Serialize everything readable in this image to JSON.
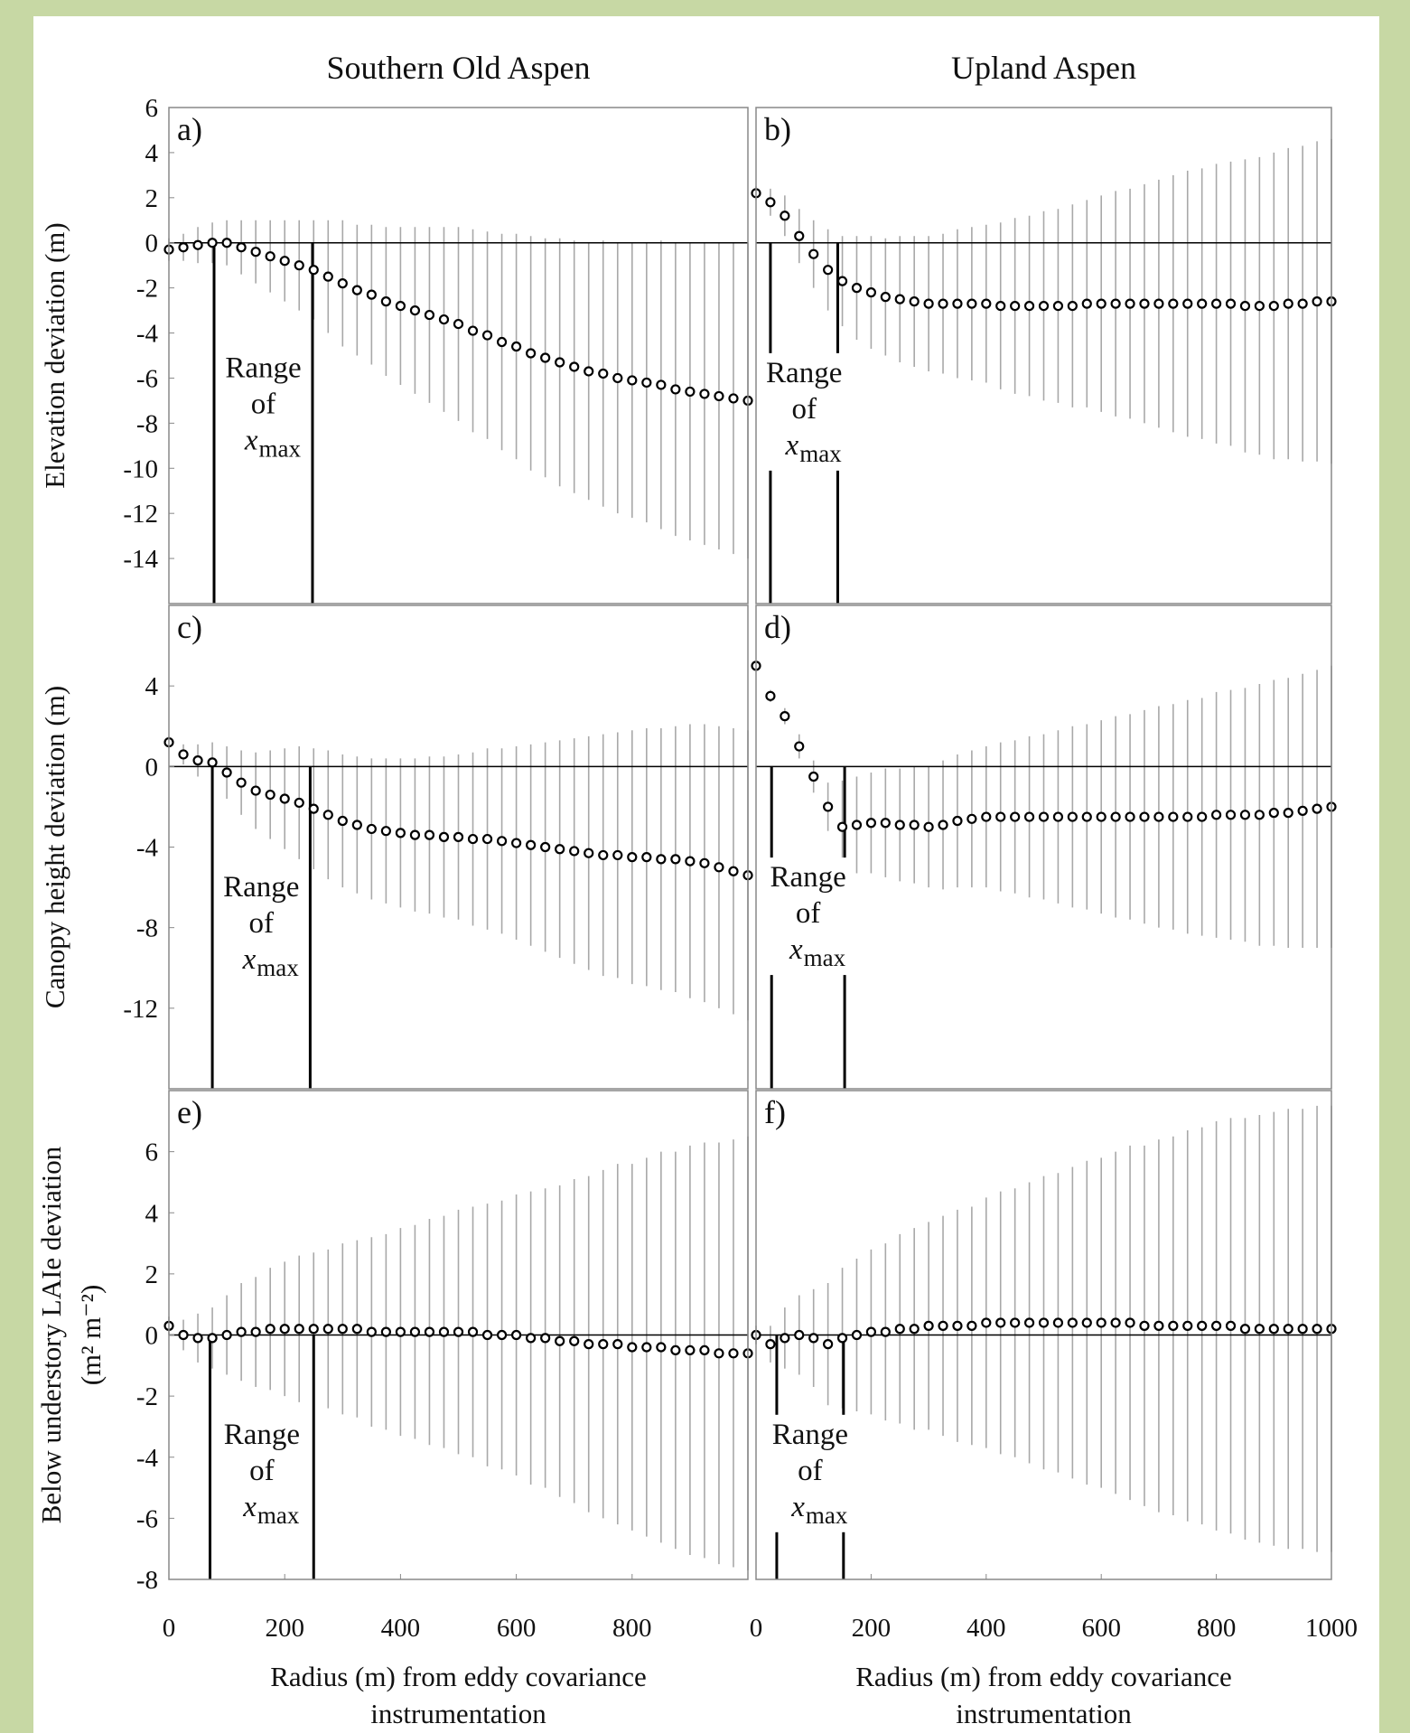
{
  "chart_data": [
    {
      "type": "errorbar",
      "panel": "a)",
      "title": "Southern Old Aspen",
      "ylabel": [
        "Elevation deviation (m)"
      ],
      "xlim": [
        0,
        1000
      ],
      "ylim": [
        -16,
        6
      ],
      "yticks": [
        6,
        4,
        2,
        0,
        -2,
        -4,
        -6,
        -8,
        -10,
        -12,
        -14
      ],
      "zero_line": true,
      "range_lines": [
        78,
        248
      ],
      "annotation": {
        "text": [
          "Range",
          "of"
        ],
        "symbol": "x",
        "subscript": "max"
      },
      "x": [
        0,
        25,
        50,
        75,
        100,
        125,
        150,
        175,
        200,
        225,
        250,
        275,
        300,
        325,
        350,
        375,
        400,
        425,
        450,
        475,
        500,
        525,
        550,
        575,
        600,
        625,
        650,
        675,
        700,
        725,
        750,
        775,
        800,
        825,
        850,
        875,
        900,
        925,
        950,
        975,
        1000
      ],
      "values": [
        -0.3,
        -0.2,
        -0.1,
        0,
        0,
        -0.2,
        -0.4,
        -0.6,
        -0.8,
        -1,
        -1.2,
        -1.5,
        -1.8,
        -2.1,
        -2.3,
        -2.6,
        -2.8,
        -3,
        -3.2,
        -3.4,
        -3.6,
        -3.9,
        -4.1,
        -4.4,
        -4.6,
        -4.9,
        -5.1,
        -5.3,
        -5.5,
        -5.7,
        -5.8,
        -6,
        -6.1,
        -6.2,
        -6.3,
        -6.5,
        -6.6,
        -6.7,
        -6.8,
        -6.9,
        -7
      ],
      "errors": [
        0.5,
        0.6,
        0.8,
        0.9,
        1.0,
        1.2,
        1.4,
        1.6,
        1.8,
        2.0,
        2.2,
        2.5,
        2.8,
        2.9,
        3.1,
        3.3,
        3.5,
        3.7,
        3.9,
        4.1,
        4.3,
        4.5,
        4.6,
        4.8,
        5.0,
        5.2,
        5.3,
        5.5,
        5.6,
        5.7,
        5.9,
        6.0,
        6.1,
        6.2,
        6.4,
        6.5,
        6.6,
        6.7,
        6.8,
        6.9,
        7.0
      ]
    },
    {
      "type": "errorbar",
      "panel": "b)",
      "title": "Upland Aspen",
      "xlim": [
        0,
        1000
      ],
      "ylim": [
        -16,
        6
      ],
      "zero_line": true,
      "range_lines": [
        25,
        142
      ],
      "annotation": {
        "text": [
          "Range",
          "of"
        ],
        "symbol": "x",
        "subscript": "max"
      },
      "x": [
        0,
        25,
        50,
        75,
        100,
        125,
        150,
        175,
        200,
        225,
        250,
        275,
        300,
        325,
        350,
        375,
        400,
        425,
        450,
        475,
        500,
        525,
        550,
        575,
        600,
        625,
        650,
        675,
        700,
        725,
        750,
        775,
        800,
        825,
        850,
        875,
        900,
        925,
        950,
        975,
        1000
      ],
      "values": [
        2.2,
        1.8,
        1.2,
        0.3,
        -0.5,
        -1.2,
        -1.7,
        -2.0,
        -2.2,
        -2.4,
        -2.5,
        -2.6,
        -2.7,
        -2.7,
        -2.7,
        -2.7,
        -2.7,
        -2.8,
        -2.8,
        -2.8,
        -2.8,
        -2.8,
        -2.8,
        -2.7,
        -2.7,
        -2.7,
        -2.7,
        -2.7,
        -2.7,
        -2.7,
        -2.7,
        -2.7,
        -2.7,
        -2.7,
        -2.8,
        -2.8,
        -2.8,
        -2.7,
        -2.7,
        -2.6,
        -2.6
      ],
      "errors": [
        0.3,
        0.6,
        0.9,
        1.2,
        1.5,
        1.8,
        2.0,
        2.3,
        2.5,
        2.6,
        2.8,
        2.9,
        3.0,
        3.1,
        3.3,
        3.4,
        3.5,
        3.7,
        3.9,
        4.0,
        4.2,
        4.3,
        4.5,
        4.6,
        4.8,
        5.0,
        5.1,
        5.3,
        5.5,
        5.7,
        5.9,
        6.0,
        6.2,
        6.3,
        6.5,
        6.6,
        6.8,
        6.9,
        7.0,
        7.1,
        7.2
      ]
    },
    {
      "type": "errorbar",
      "panel": "c)",
      "ylabel": [
        "Canopy height deviation (m)"
      ],
      "xlim": [
        0,
        1000
      ],
      "ylim": [
        -16,
        8
      ],
      "yticks": [
        4,
        0,
        -4,
        -8,
        -12
      ],
      "zero_line": true,
      "range_lines": [
        75,
        244
      ],
      "annotation": {
        "text": [
          "Range",
          "of"
        ],
        "symbol": "x",
        "subscript": "max"
      },
      "x": [
        0,
        25,
        50,
        75,
        100,
        125,
        150,
        175,
        200,
        225,
        250,
        275,
        300,
        325,
        350,
        375,
        400,
        425,
        450,
        475,
        500,
        525,
        550,
        575,
        600,
        625,
        650,
        675,
        700,
        725,
        750,
        775,
        800,
        825,
        850,
        875,
        900,
        925,
        950,
        975,
        1000
      ],
      "values": [
        1.2,
        0.6,
        0.3,
        0.2,
        -0.3,
        -0.8,
        -1.2,
        -1.4,
        -1.6,
        -1.8,
        -2.1,
        -2.4,
        -2.7,
        -2.9,
        -3.1,
        -3.2,
        -3.3,
        -3.4,
        -3.4,
        -3.5,
        -3.5,
        -3.6,
        -3.6,
        -3.7,
        -3.8,
        -3.9,
        -4.0,
        -4.1,
        -4.2,
        -4.3,
        -4.4,
        -4.4,
        -4.5,
        -4.5,
        -4.6,
        -4.6,
        -4.7,
        -4.8,
        -5.0,
        -5.2,
        -5.4
      ],
      "errors": [
        0.3,
        0.5,
        0.8,
        1.0,
        1.3,
        1.6,
        1.9,
        2.2,
        2.5,
        2.8,
        3.0,
        3.2,
        3.3,
        3.4,
        3.5,
        3.6,
        3.7,
        3.8,
        3.9,
        4.0,
        4.1,
        4.3,
        4.5,
        4.6,
        4.8,
        5.0,
        5.2,
        5.4,
        5.6,
        5.8,
        6.0,
        6.1,
        6.3,
        6.4,
        6.5,
        6.6,
        6.8,
        6.9,
        7.0,
        7.1,
        7.2
      ]
    },
    {
      "type": "errorbar",
      "panel": "d)",
      "xlim": [
        0,
        1000
      ],
      "ylim": [
        -16,
        8
      ],
      "zero_line": true,
      "range_lines": [
        27,
        154
      ],
      "annotation": {
        "text": [
          "Range",
          "of"
        ],
        "symbol": "x",
        "subscript": "max"
      },
      "x": [
        0,
        25,
        50,
        75,
        100,
        125,
        150,
        175,
        200,
        225,
        250,
        275,
        300,
        325,
        350,
        375,
        400,
        425,
        450,
        475,
        500,
        525,
        550,
        575,
        600,
        625,
        650,
        675,
        700,
        725,
        750,
        775,
        800,
        825,
        850,
        875,
        900,
        925,
        950,
        975,
        1000
      ],
      "values": [
        5.0,
        3.5,
        2.5,
        1.0,
        -0.5,
        -2.0,
        -3.0,
        -2.9,
        -2.8,
        -2.8,
        -2.9,
        -2.9,
        -3.0,
        -2.9,
        -2.7,
        -2.6,
        -2.5,
        -2.5,
        -2.5,
        -2.5,
        -2.5,
        -2.5,
        -2.5,
        -2.5,
        -2.5,
        -2.5,
        -2.5,
        -2.5,
        -2.5,
        -2.5,
        -2.5,
        -2.5,
        -2.4,
        -2.4,
        -2.4,
        -2.4,
        -2.3,
        -2.3,
        -2.2,
        -2.1,
        -2.0
      ],
      "errors": [
        0.2,
        0.3,
        0.4,
        0.6,
        0.8,
        1.2,
        2.3,
        2.4,
        2.5,
        2.7,
        2.8,
        2.9,
        3.0,
        3.2,
        3.3,
        3.4,
        3.5,
        3.7,
        3.8,
        4.0,
        4.1,
        4.3,
        4.5,
        4.6,
        4.8,
        5.0,
        5.1,
        5.3,
        5.5,
        5.6,
        5.8,
        5.9,
        6.1,
        6.2,
        6.3,
        6.5,
        6.6,
        6.7,
        6.8,
        6.9,
        7.0
      ]
    },
    {
      "type": "errorbar",
      "panel": "e)",
      "ylabel": [
        "Below understory LAIe deviation",
        "(m² m⁻²)"
      ],
      "xlabel": [
        "Radius (m) from eddy covariance",
        "instrumentation"
      ],
      "xlim": [
        0,
        1000
      ],
      "ylim": [
        -8,
        8
      ],
      "xticks": [
        0,
        200,
        400,
        600,
        800
      ],
      "yticks": [
        6,
        4,
        2,
        0,
        -2,
        -4,
        -6,
        -8
      ],
      "zero_line": true,
      "range_lines": [
        71,
        250
      ],
      "annotation": {
        "text": [
          "Range",
          "of"
        ],
        "symbol": "x",
        "subscript": "max"
      },
      "x": [
        0,
        25,
        50,
        75,
        100,
        125,
        150,
        175,
        200,
        225,
        250,
        275,
        300,
        325,
        350,
        375,
        400,
        425,
        450,
        475,
        500,
        525,
        550,
        575,
        600,
        625,
        650,
        675,
        700,
        725,
        750,
        775,
        800,
        825,
        850,
        875,
        900,
        925,
        950,
        975,
        1000
      ],
      "values": [
        0.3,
        0.0,
        -0.1,
        -0.1,
        0.0,
        0.1,
        0.1,
        0.2,
        0.2,
        0.2,
        0.2,
        0.2,
        0.2,
        0.2,
        0.1,
        0.1,
        0.1,
        0.1,
        0.1,
        0.1,
        0.1,
        0.1,
        0.0,
        0.0,
        0.0,
        -0.1,
        -0.1,
        -0.2,
        -0.2,
        -0.3,
        -0.3,
        -0.3,
        -0.4,
        -0.4,
        -0.4,
        -0.5,
        -0.5,
        -0.5,
        -0.6,
        -0.6,
        -0.6
      ],
      "errors": [
        0.3,
        0.5,
        0.8,
        1.0,
        1.3,
        1.6,
        1.8,
        2.0,
        2.2,
        2.4,
        2.5,
        2.6,
        2.8,
        2.9,
        3.1,
        3.2,
        3.4,
        3.5,
        3.7,
        3.8,
        4.0,
        4.1,
        4.3,
        4.4,
        4.6,
        4.8,
        4.9,
        5.1,
        5.3,
        5.5,
        5.7,
        5.9,
        6.0,
        6.2,
        6.4,
        6.5,
        6.7,
        6.8,
        6.9,
        7.0,
        7.1
      ]
    },
    {
      "type": "errorbar",
      "panel": "f)",
      "xlabel": [
        "Radius (m) from eddy covariance",
        "instrumentation"
      ],
      "xlim": [
        0,
        1000
      ],
      "ylim": [
        -8,
        8
      ],
      "xticks": [
        0,
        200,
        400,
        600,
        800,
        1000
      ],
      "zero_line": true,
      "range_lines": [
        36,
        152
      ],
      "annotation": {
        "text": [
          "Range",
          "of"
        ],
        "symbol": "x",
        "subscript": "max"
      },
      "x": [
        0,
        25,
        50,
        75,
        100,
        125,
        150,
        175,
        200,
        225,
        250,
        275,
        300,
        325,
        350,
        375,
        400,
        425,
        450,
        475,
        500,
        525,
        550,
        575,
        600,
        625,
        650,
        675,
        700,
        725,
        750,
        775,
        800,
        825,
        850,
        875,
        900,
        925,
        950,
        975,
        1000
      ],
      "values": [
        0.0,
        -0.3,
        -0.1,
        0.0,
        -0.1,
        -0.3,
        -0.1,
        0.0,
        0.1,
        0.1,
        0.2,
        0.2,
        0.3,
        0.3,
        0.3,
        0.3,
        0.4,
        0.4,
        0.4,
        0.4,
        0.4,
        0.4,
        0.4,
        0.4,
        0.4,
        0.4,
        0.4,
        0.3,
        0.3,
        0.3,
        0.3,
        0.3,
        0.3,
        0.3,
        0.2,
        0.2,
        0.2,
        0.2,
        0.2,
        0.2,
        0.2
      ],
      "errors": [
        0.3,
        0.6,
        1.0,
        1.3,
        1.6,
        2.0,
        2.3,
        2.5,
        2.7,
        2.9,
        3.1,
        3.3,
        3.4,
        3.6,
        3.8,
        3.9,
        4.1,
        4.3,
        4.4,
        4.6,
        4.8,
        4.9,
        5.1,
        5.3,
        5.4,
        5.6,
        5.8,
        5.9,
        6.1,
        6.2,
        6.4,
        6.5,
        6.7,
        6.8,
        6.9,
        7.0,
        7.1,
        7.2,
        7.2,
        7.3,
        7.3
      ]
    }
  ]
}
